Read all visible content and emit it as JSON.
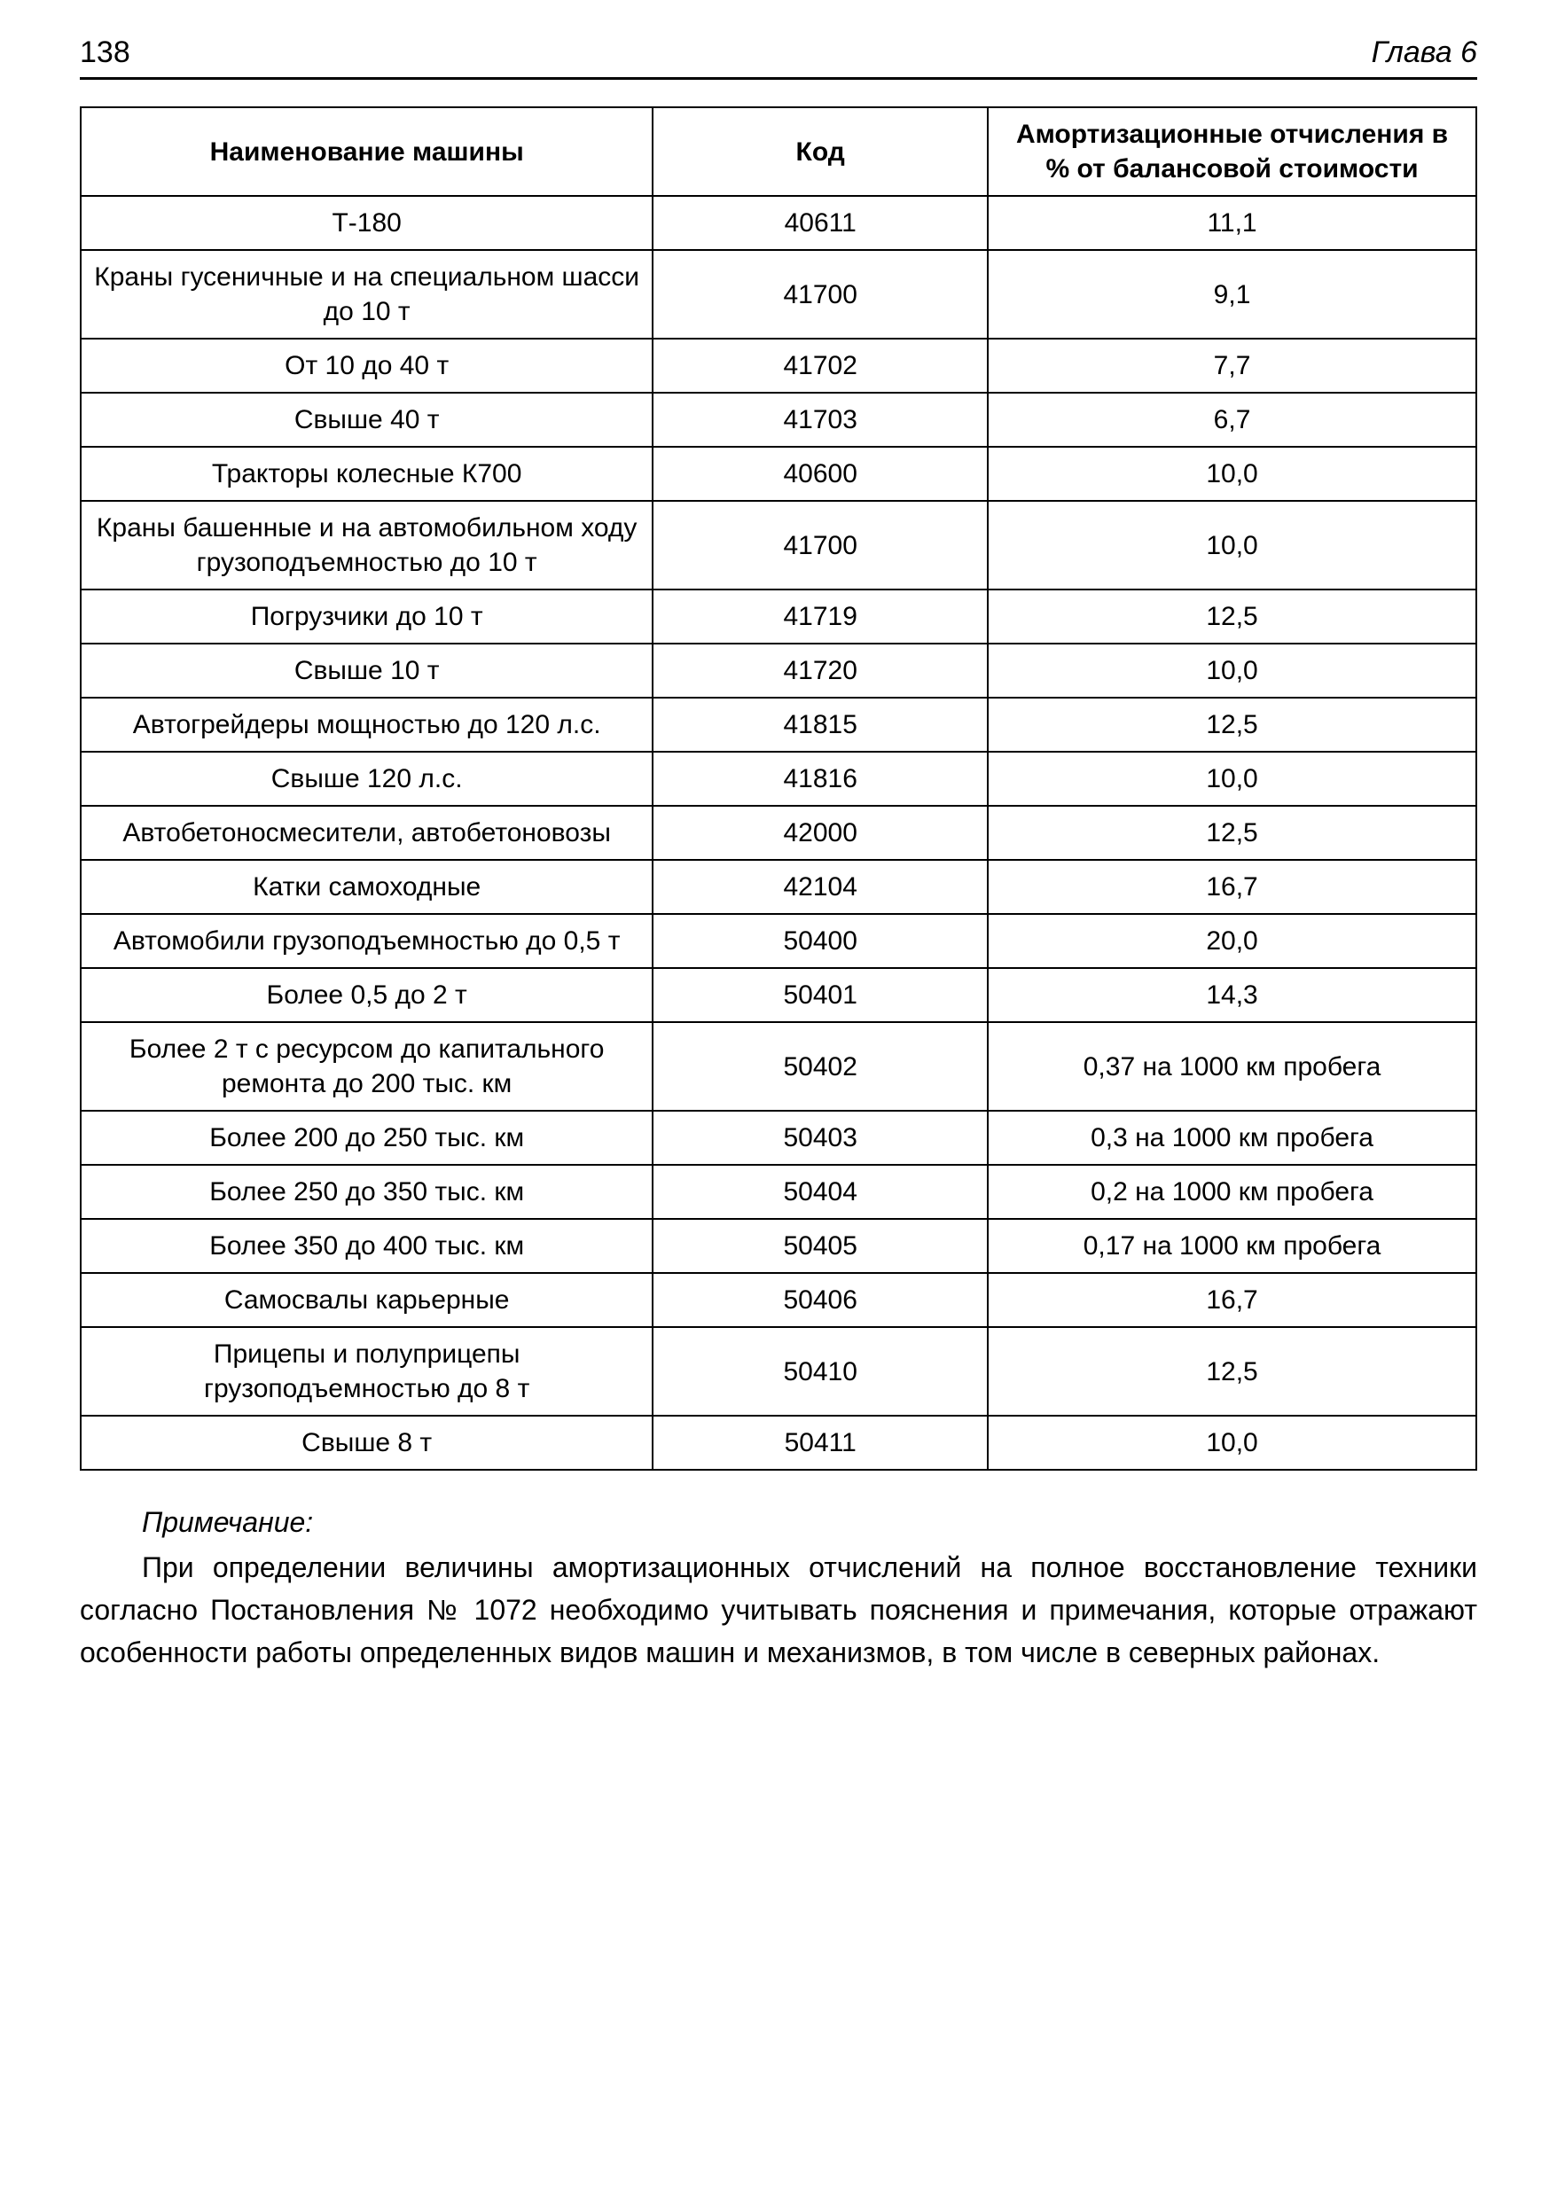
{
  "header": {
    "page_number": "138",
    "chapter": "Глава 6"
  },
  "table": {
    "columns": [
      "Наименование машины",
      "Код",
      "Амортизационные отчисления в % от балансовой стоимости"
    ],
    "rows": [
      [
        "Т-180",
        "40611",
        "11,1"
      ],
      [
        "Краны гусеничные и на специальном шасси до 10 т",
        "41700",
        "9,1"
      ],
      [
        "От 10 до 40 т",
        "41702",
        "7,7"
      ],
      [
        "Свыше 40 т",
        "41703",
        "6,7"
      ],
      [
        "Тракторы колесные К700",
        "40600",
        "10,0"
      ],
      [
        "Краны башенные и на автомобильном ходу грузоподъемностью до 10 т",
        "41700",
        "10,0"
      ],
      [
        "Погрузчики до 10 т",
        "41719",
        "12,5"
      ],
      [
        "Свыше 10 т",
        "41720",
        "10,0"
      ],
      [
        "Автогрейдеры мощностью до 120 л.с.",
        "41815",
        "12,5"
      ],
      [
        "Свыше 120 л.с.",
        "41816",
        "10,0"
      ],
      [
        "Автобетоносмесители, автобетоновозы",
        "42000",
        "12,5"
      ],
      [
        "Катки самоходные",
        "42104",
        "16,7"
      ],
      [
        "Автомобили грузоподъемностью до 0,5 т",
        "50400",
        "20,0"
      ],
      [
        "Более 0,5 до 2 т",
        "50401",
        "14,3"
      ],
      [
        "Более 2 т с ресурсом до капитального ремонта до 200 тыс. км",
        "50402",
        "0,37 на 1000 км пробега"
      ],
      [
        "Более 200 до 250 тыс. км",
        "50403",
        "0,3 на 1000 км пробега"
      ],
      [
        "Более 250 до 350 тыс. км",
        "50404",
        "0,2 на 1000 км пробега"
      ],
      [
        "Более 350 до 400 тыс. км",
        "50405",
        "0,17 на 1000 км пробега"
      ],
      [
        "Самосвалы карьерные",
        "50406",
        "16,7"
      ],
      [
        "Прицепы и полуприцепы грузоподъемностью до 8 т",
        "50410",
        "12,5"
      ],
      [
        "Свыше 8 т",
        "50411",
        "10,0"
      ]
    ]
  },
  "note": {
    "heading": "Примечание:",
    "body": "При определении величины амортизационных отчислений на полное восстановление техники согласно Постановления № 1072 необходимо учитывать пояснения и примечания, которые отражают особенности работы определенных видов машин и механизмов, в том числе в северных районах."
  }
}
